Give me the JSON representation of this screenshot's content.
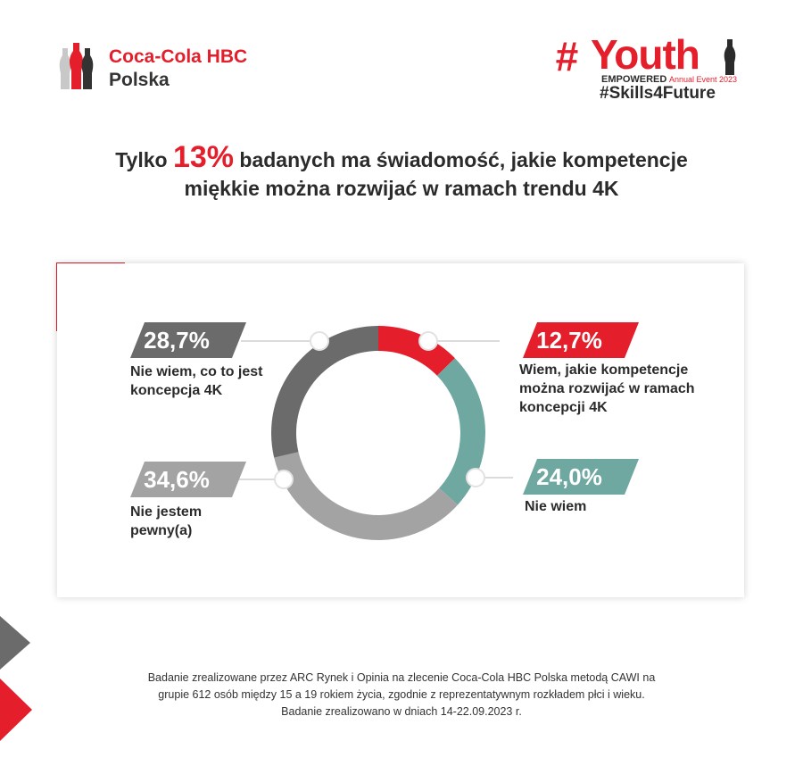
{
  "brand": {
    "name": "Coca-Cola HBC",
    "sub": "Polska"
  },
  "event": {
    "hash": "#",
    "word": "Youth",
    "empowered": "EMPOWERED",
    "annual": "Annual Event 2023",
    "tag": "#Skills4Future"
  },
  "title": {
    "before": "Tylko ",
    "highlight": "13%",
    "after": " badanych ma świadomość, jakie kompetencje",
    "line2": "miękkie można rozwijać w ramach trendu 4K"
  },
  "chart_data": {
    "type": "pie",
    "categories": [
      "Wiem, jakie kompetencje można rozwijać w ramach koncepcji 4K",
      "Nie wiem",
      "Nie jestem pewny(a)",
      "Nie wiem, co to jest koncepcja 4K"
    ],
    "values": [
      12.7,
      24.0,
      34.6,
      28.7
    ],
    "value_labels": [
      "12,7%",
      "24,0%",
      "34,6%",
      "28,7%"
    ],
    "colors": [
      "#e41e2b",
      "#6fa7a1",
      "#a3a3a3",
      "#6b6b6b"
    ]
  },
  "labels": {
    "s1": [
      "Wiem, jakie kompetencje",
      "można rozwijać w ramach",
      "koncepcji 4K"
    ],
    "s2": [
      "Nie wiem"
    ],
    "s3": [
      "Nie jestem",
      "pewny(a)"
    ],
    "s4": [
      "Nie wiem, co to jest",
      "koncepcja 4K"
    ]
  },
  "footer": {
    "line1": "Badanie zrealizowane przez ARC Rynek i Opinia na zlecenie Coca-Cola HBC Polska metodą CAWI na",
    "line2": "grupie 612 osób między 15 a 19 rokiem życia, zgodnie z reprezentatywnym rozkładem płci i wieku.",
    "line3": "Badanie zrealizowano w dniach 14-22.09.2023 r."
  }
}
